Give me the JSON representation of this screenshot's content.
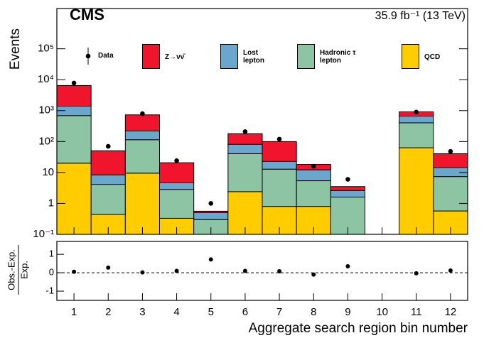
{
  "chart_data": [
    {
      "type": "bar",
      "stacked": true,
      "log_y": true,
      "title": "CMS",
      "subtitle": "35.9 fb⁻¹ (13 TeV)",
      "ylabel": "Events",
      "categories": [
        "1",
        "2",
        "3",
        "4",
        "5",
        "6",
        "7",
        "8",
        "9",
        "10",
        "11",
        "12"
      ],
      "series": [
        {
          "name": "QCD",
          "color": "#ffcc00",
          "values": [
            20,
            0.44,
            9.5,
            0.33,
            0,
            2.4,
            0.8,
            0.8,
            0,
            0,
            63,
            0.57
          ]
        },
        {
          "name": "Hadronic τ lepton",
          "color": "#8cc4a4",
          "values": [
            670,
            3.7,
            105,
            2.5,
            0.3,
            38,
            12,
            4.6,
            1.6,
            0,
            340,
            6.8
          ]
        },
        {
          "name": "Lost lepton",
          "color": "#6ba6cc",
          "values": [
            700,
            4.2,
            105,
            1.8,
            0.21,
            41,
            10,
            6.8,
            1.0,
            0,
            260,
            7.1
          ]
        },
        {
          "name": "Z→νν̄",
          "color": "#f0142d",
          "values": [
            5100,
            42,
            510,
            16,
            0.05,
            98,
            77,
            6,
            0.9,
            0,
            250,
            26
          ]
        }
      ],
      "points": {
        "name": "Data",
        "color": "#000000",
        "values": [
          7800,
          70,
          800,
          24,
          1.0,
          210,
          120,
          16,
          6,
          null,
          900,
          48
        ]
      },
      "ylim": [
        0.1,
        2000000
      ],
      "yticks": [
        {
          "value": 0.1,
          "label": "10⁻¹"
        },
        1,
        10,
        {
          "value": 100,
          "label": "10²"
        },
        {
          "value": 1000,
          "label": "10³"
        },
        {
          "value": 10000,
          "label": "10⁴"
        },
        {
          "value": 100000,
          "label": "10⁵"
        }
      ]
    },
    {
      "type": "scatter",
      "ylabel": [
        "Obs.-Exp.",
        "Exp."
      ],
      "xlabel": "Aggregate search region bin number",
      "values": [
        0.05,
        0.28,
        0.02,
        0.1,
        0.72,
        0.1,
        0.08,
        -0.1,
        0.35,
        null,
        -0.03,
        0.12
      ],
      "ylim": [
        -1.5,
        1.7
      ],
      "yticks": [
        -1,
        0,
        1
      ]
    }
  ]
}
